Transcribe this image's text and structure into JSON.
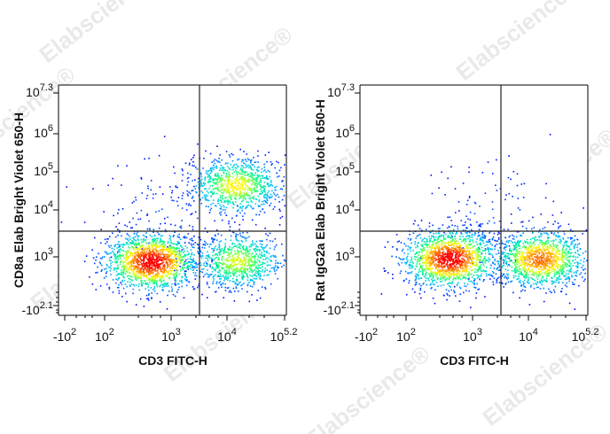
{
  "watermark": "Elabscience",
  "watermark_mark": "®",
  "chart_data": [
    {
      "type": "scatter",
      "subtype": "flow-cytometry-density-dot-plot",
      "title": "",
      "xlabel": "CD3 FITC-H",
      "ylabel": "CD8a Elab Bright Violet 650-H",
      "x_scale": "biexponential",
      "y_scale": "biexponential",
      "xlim": [
        "-10^2",
        "10^5.2"
      ],
      "ylim": [
        "-10^2.1",
        "10^7.3"
      ],
      "x_ticks": [
        {
          "base": "-10",
          "exp": "2"
        },
        {
          "base": "10",
          "exp": "2"
        },
        {
          "base": "10",
          "exp": "3"
        },
        {
          "base": "10",
          "exp": "4"
        },
        {
          "base": "10",
          "exp": "5.2"
        }
      ],
      "y_ticks": [
        {
          "base": "-10",
          "exp": "2.1"
        },
        {
          "base": "10",
          "exp": "3"
        },
        {
          "base": "10",
          "exp": "4"
        },
        {
          "base": "10",
          "exp": "5"
        },
        {
          "base": "10",
          "exp": "6"
        },
        {
          "base": "10",
          "exp": "7.3"
        }
      ],
      "quadrant_gate": {
        "x": 3500,
        "y": 3000
      },
      "color_scale": [
        "#0000ff",
        "#00bfff",
        "#00ff80",
        "#ffff00",
        "#ff8000",
        "#ff0000"
      ],
      "populations": [
        {
          "x_center": 500,
          "y_center": 350,
          "relative_density": 1.0
        },
        {
          "x_center": 16000,
          "y_center": 400,
          "relative_density": 0.55
        },
        {
          "x_center": 15000,
          "y_center": 45000,
          "relative_density": 0.6
        },
        {
          "x_center": 800,
          "y_center": 8000,
          "relative_density": 0.08
        }
      ],
      "grid": false,
      "legend": "none"
    },
    {
      "type": "scatter",
      "subtype": "flow-cytometry-density-dot-plot",
      "title": "",
      "xlabel": "CD3 FITC-H",
      "ylabel": "Rat IgG2a Elab Bright Violet 650-H",
      "x_scale": "biexponential",
      "y_scale": "biexponential",
      "xlim": [
        "-10^2",
        "10^5.2"
      ],
      "ylim": [
        "-10^2.1",
        "10^7.3"
      ],
      "x_ticks": [
        {
          "base": "-10",
          "exp": "2"
        },
        {
          "base": "10",
          "exp": "2"
        },
        {
          "base": "10",
          "exp": "3"
        },
        {
          "base": "10",
          "exp": "4"
        },
        {
          "base": "10",
          "exp": "5.2"
        }
      ],
      "y_ticks": [
        {
          "base": "-10",
          "exp": "2.1"
        },
        {
          "base": "10",
          "exp": "3"
        },
        {
          "base": "10",
          "exp": "4"
        },
        {
          "base": "10",
          "exp": "5"
        },
        {
          "base": "10",
          "exp": "6"
        },
        {
          "base": "10",
          "exp": "7.3"
        }
      ],
      "quadrant_gate": {
        "x": 3500,
        "y": 3000
      },
      "color_scale": [
        "#0000ff",
        "#00bfff",
        "#00ff80",
        "#ffff00",
        "#ff8000",
        "#ff0000"
      ],
      "populations": [
        {
          "x_center": 450,
          "y_center": 700,
          "relative_density": 1.0
        },
        {
          "x_center": 17000,
          "y_center": 650,
          "relative_density": 0.8
        },
        {
          "x_center": 2000,
          "y_center": 7000,
          "relative_density": 0.08
        }
      ],
      "grid": false,
      "legend": "none"
    }
  ]
}
